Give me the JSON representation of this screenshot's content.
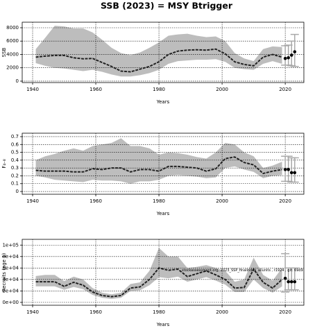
{
  "chart_data": [
    {
      "type": "line",
      "title": "SSB (2023) = MSY Btrigger",
      "ylabel": "SSB",
      "xlabel": "Years",
      "xlim": [
        1936.7,
        2025.9
      ],
      "xticks": [
        1940,
        1960,
        1980,
        2000,
        2020
      ],
      "ylim": [
        -210,
        8830
      ],
      "yticks": [
        0,
        2000,
        4000,
        6000,
        8000
      ],
      "grid": true,
      "color": "#222222",
      "band_color": "#bdbdbd",
      "error_color": "#a9a9a9",
      "x": [
        1941,
        1944,
        1947,
        1950,
        1953,
        1956,
        1959,
        1962,
        1965,
        1968,
        1971,
        1974,
        1977,
        1980,
        1983,
        1986,
        1989,
        1992,
        1995,
        1998,
        2001,
        2004,
        2007,
        2010,
        2013,
        2016,
        2019
      ],
      "values": [
        3600,
        3750,
        3850,
        3850,
        3500,
        3350,
        3400,
        2800,
        2200,
        1500,
        1400,
        1800,
        2200,
        2900,
        4000,
        4500,
        4650,
        4700,
        4650,
        4800,
        4100,
        2900,
        2500,
        2300,
        3600,
        4000,
        3600
      ],
      "lower": [
        2700,
        2300,
        2000,
        1900,
        1700,
        1500,
        1700,
        1400,
        1000,
        700,
        700,
        900,
        1200,
        1700,
        2600,
        3000,
        3100,
        3200,
        3200,
        3300,
        2900,
        2000,
        1800,
        1700,
        2600,
        3000,
        2600
      ],
      "upper": [
        4800,
        6500,
        8300,
        8200,
        7900,
        7900,
        7300,
        6200,
        5000,
        4200,
        3900,
        4300,
        5000,
        5800,
        6800,
        7000,
        7100,
        6800,
        6600,
        6700,
        6000,
        4200,
        3400,
        3000,
        4800,
        5200,
        5100
      ],
      "points": {
        "x": [
          2020,
          2021,
          2022,
          2023
        ],
        "values": [
          3400,
          3500,
          3900,
          4400
        ],
        "lower": [
          2400,
          2400,
          2300,
          2200
        ],
        "upper": [
          5300,
          5400,
          6000,
          7000
        ]
      }
    },
    {
      "type": "line",
      "ylabel": "F₄₋₈",
      "xlabel": "Years",
      "xlim": [
        1936.7,
        2025.9
      ],
      "xticks": [
        1940,
        1960,
        1980,
        2000,
        2020
      ],
      "ylim": [
        -0.035,
        0.744
      ],
      "yticks": [
        0,
        0.1,
        0.2,
        0.3,
        0.4,
        0.5,
        0.6,
        0.7
      ],
      "grid": true,
      "color": "#222222",
      "band_color": "#bdbdbd",
      "error_color": "#a9a9a9",
      "x": [
        1941,
        1944,
        1947,
        1950,
        1953,
        1956,
        1959,
        1962,
        1965,
        1968,
        1971,
        1974,
        1977,
        1980,
        1983,
        1986,
        1989,
        1992,
        1995,
        1998,
        2001,
        2004,
        2007,
        2010,
        2013,
        2016,
        2019
      ],
      "values": [
        0.27,
        0.26,
        0.26,
        0.26,
        0.25,
        0.25,
        0.29,
        0.28,
        0.3,
        0.3,
        0.25,
        0.28,
        0.28,
        0.26,
        0.32,
        0.32,
        0.31,
        0.3,
        0.26,
        0.29,
        0.42,
        0.44,
        0.37,
        0.34,
        0.23,
        0.26,
        0.28
      ],
      "lower": [
        0.2,
        0.18,
        0.15,
        0.14,
        0.13,
        0.12,
        0.15,
        0.14,
        0.14,
        0.13,
        0.1,
        0.13,
        0.13,
        0.15,
        0.2,
        0.21,
        0.2,
        0.19,
        0.17,
        0.18,
        0.3,
        0.32,
        0.28,
        0.25,
        0.17,
        0.2,
        0.21
      ],
      "upper": [
        0.4,
        0.45,
        0.48,
        0.52,
        0.55,
        0.52,
        0.58,
        0.6,
        0.62,
        0.68,
        0.58,
        0.58,
        0.55,
        0.47,
        0.5,
        0.49,
        0.47,
        0.44,
        0.42,
        0.5,
        0.62,
        0.6,
        0.5,
        0.45,
        0.3,
        0.33,
        0.38
      ],
      "points": {
        "x": [
          2020,
          2021,
          2022,
          2023
        ],
        "values": [
          0.28,
          0.28,
          0.24,
          0.24
        ],
        "lower": [
          0.13,
          0.13,
          0.12,
          0.12
        ],
        "upper": [
          0.45,
          0.45,
          0.43,
          0.43
        ]
      }
    },
    {
      "type": "line",
      "ylabel": "Recruits (age 1)",
      "xlabel": "Years",
      "annotation": "stockassessment.org, 2023_SSP_finalindex_allunits , r1924 , git: 69d9",
      "xlim": [
        1936.7,
        2025.9
      ],
      "xticks": [
        1940,
        1960,
        1980,
        2000,
        2020
      ],
      "ylim": [
        -5000,
        110000
      ],
      "yticks": [
        {
          "value": 0,
          "label": "0e+00"
        },
        {
          "value": 20000,
          "label": "2e+04"
        },
        {
          "value": 40000,
          "label": "4e+04"
        },
        {
          "value": 60000,
          "label": "6e+04"
        },
        {
          "value": 80000,
          "label": "8e+04"
        },
        {
          "value": 100000,
          "label": "1e+05"
        }
      ],
      "grid": true,
      "color": "#222222",
      "band_color": "#bdbdbd",
      "error_color": "#a9a9a9",
      "x": [
        1941,
        1944,
        1947,
        1950,
        1953,
        1956,
        1959,
        1962,
        1965,
        1968,
        1971,
        1974,
        1977,
        1980,
        1983,
        1986,
        1989,
        1992,
        1995,
        1998,
        2001,
        2004,
        2007,
        2010,
        2013,
        2016,
        2019
      ],
      "values": [
        36000,
        36000,
        36000,
        28000,
        35000,
        30000,
        18000,
        12000,
        10000,
        12000,
        25000,
        27000,
        40000,
        60000,
        56000,
        58000,
        45000,
        50000,
        55000,
        48000,
        40000,
        25000,
        26000,
        58000,
        35000,
        25000,
        40000
      ],
      "lower": [
        28000,
        28000,
        28000,
        22000,
        27000,
        23000,
        13000,
        8000,
        6000,
        8000,
        20000,
        21000,
        30000,
        44000,
        42000,
        45000,
        36000,
        40000,
        44000,
        38000,
        31000,
        18000,
        18000,
        40000,
        25000,
        17000,
        28000
      ],
      "upper": [
        46000,
        48000,
        48000,
        37000,
        45000,
        40000,
        25000,
        17000,
        14000,
        17000,
        32000,
        35000,
        55000,
        95000,
        80000,
        80000,
        60000,
        62000,
        65000,
        60000,
        55000,
        36000,
        40000,
        78000,
        48000,
        38000,
        60000
      ],
      "points": {
        "x": [
          2020,
          2021,
          2022,
          2023
        ],
        "values": [
          42000,
          36000,
          36000,
          36000
        ],
        "lower": [
          18000,
          22000,
          22000,
          22000
        ],
        "upper": [
          85000,
          60000,
          60000,
          60000
        ]
      }
    }
  ]
}
